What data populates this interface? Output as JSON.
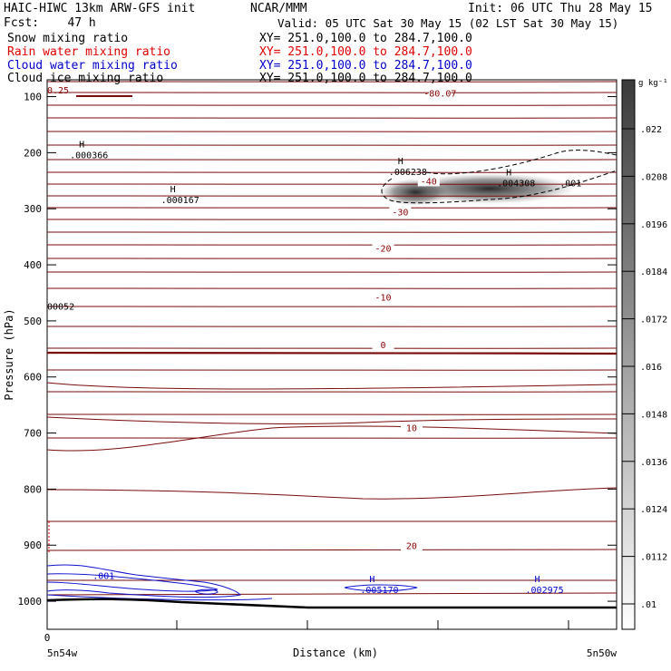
{
  "header": {
    "title_left": "HAIC-HIWC 13km ARW-GFS init",
    "org": "NCAR/MMM",
    "init": "Init: 06 UTC Thu 28 May 15",
    "fcst": "Fcst:    47 h",
    "valid": "Valid: 05 UTC Sat 30 May 15 (02 LST Sat 30 May 15)",
    "fields": [
      {
        "name": "Snow mixing ratio",
        "xy": "XY= 251.0,100.0 to 284.7,100.0",
        "color": "#000000"
      },
      {
        "name": "Rain water mixing ratio",
        "xy": "XY= 251.0,100.0 to 284.7,100.0",
        "color": "#e00000"
      },
      {
        "name": "Cloud water mixing ratio",
        "xy": "XY= 251.0,100.0 to 284.7,100.0",
        "color": "#0000cc"
      },
      {
        "name": "Cloud ice mixing ratio",
        "xy": "XY= 251.0,100.0 to 284.7,100.0",
        "color": "#000000"
      }
    ]
  },
  "chart_data": {
    "type": "contour",
    "xlabel": "Distance (km)",
    "ylabel": "Pressure (hPa)",
    "x_tick_labels": {
      "left": "5n54w",
      "right": "5n50w",
      "zero": "0"
    },
    "y_ticks": [
      100,
      200,
      300,
      400,
      500,
      600,
      700,
      800,
      900,
      1000
    ],
    "ylim": [
      1050,
      70
    ],
    "colorbar": {
      "unit": "g kg⁻¹",
      "labels": [
        ".022",
        ".0208",
        ".0196",
        ".0184",
        ".0172",
        ".016",
        ".0148",
        ".0136",
        ".0124",
        ".0112",
        ".01"
      ]
    },
    "temperature_contour_labels": [
      {
        "text": "-80.07",
        "x": 0.69,
        "p": 98
      },
      {
        "text": "-40",
        "x": 0.67,
        "p": 255
      },
      {
        "text": "-30",
        "x": 0.62,
        "p": 310
      },
      {
        "text": "-20",
        "x": 0.59,
        "p": 375
      },
      {
        "text": "-10",
        "x": 0.59,
        "p": 462
      },
      {
        "text": "0",
        "x": 0.59,
        "p": 547
      },
      {
        "text": "10",
        "x": 0.64,
        "p": 695
      },
      {
        "text": "20",
        "x": 0.64,
        "p": 905
      }
    ],
    "extrema_labels": [
      {
        "mark": "",
        "value": "0.25",
        "x": 0.0,
        "p": 94,
        "color": "#880000"
      },
      {
        "mark": "H",
        "value": ".000366",
        "x": 0.04,
        "p": 210,
        "color": "#000000"
      },
      {
        "mark": "H",
        "value": ".000167",
        "x": 0.2,
        "p": 290,
        "color": "#000000"
      },
      {
        "mark": "",
        "value": "00052",
        "x": 0.0,
        "p": 480,
        "color": "#000000"
      },
      {
        "mark": "H",
        "value": ".006238",
        "x": 0.6,
        "p": 240,
        "color": "#000000"
      },
      {
        "mark": "H",
        "value": ".004308",
        "x": 0.79,
        "p": 260,
        "color": "#000000"
      },
      {
        "mark": "",
        "value": ".001",
        "x": 0.9,
        "p": 260,
        "color": "#000000"
      },
      {
        "mark": "",
        "value": ".001",
        "x": 0.08,
        "p": 960,
        "color": "#0000cc"
      },
      {
        "mark": "H",
        "value": ".005170",
        "x": 0.55,
        "p": 985,
        "color": "#0000cc"
      },
      {
        "mark": "H",
        "value": ".002975",
        "x": 0.84,
        "p": 985,
        "color": "#0000cc"
      }
    ]
  }
}
